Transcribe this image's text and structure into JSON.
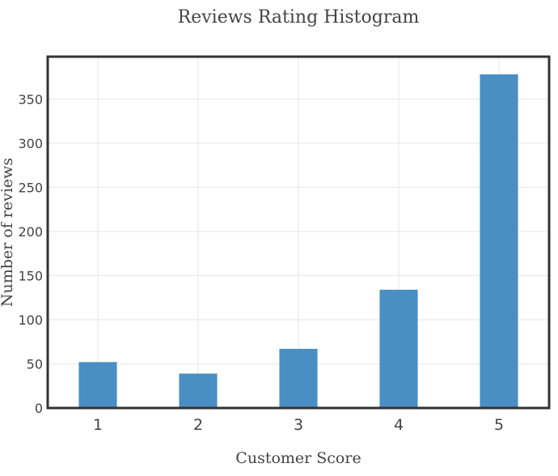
{
  "chart_data": {
    "type": "bar",
    "title": "Reviews Rating Histogram",
    "xlabel": "Customer Score",
    "ylabel": "Number of reviews",
    "categories": [
      "1",
      "2",
      "3",
      "4",
      "5"
    ],
    "values": [
      52,
      39,
      67,
      134,
      378
    ],
    "yticks": [
      0,
      50,
      100,
      150,
      200,
      250,
      300,
      350
    ],
    "ylim": [
      0,
      398
    ],
    "grid": true,
    "bar_color": "#4a8fc4",
    "frame_color": "#333333",
    "grid_color": "#e6e6e6"
  }
}
